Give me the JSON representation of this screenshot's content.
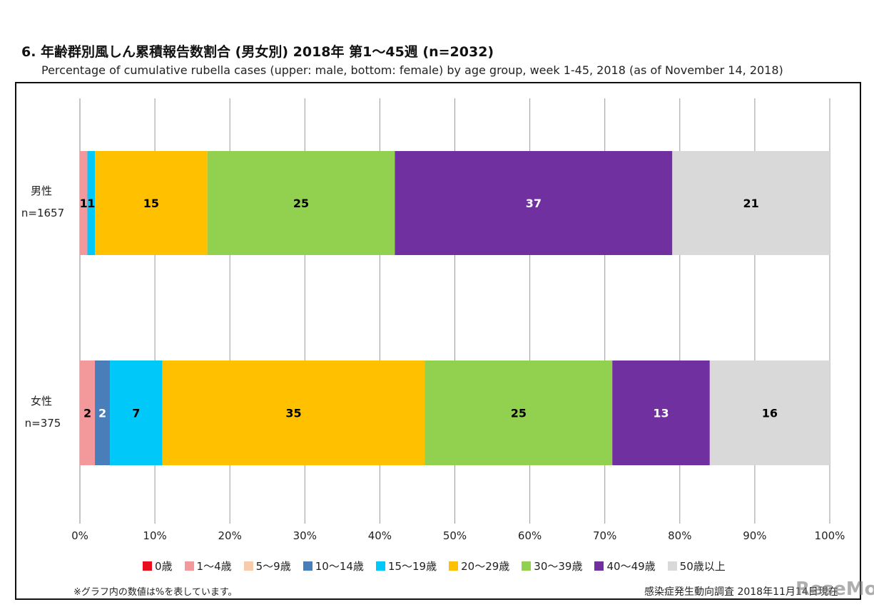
{
  "chart_data": {
    "type": "bar",
    "orientation": "horizontal",
    "stacked": true,
    "title": "6. 年齢群別風しん累積報告数割合 (男女別) 2018年 第1～45週 (n=2032)",
    "subtitle": "Percentage of cumulative rubella cases (upper: male, bottom: female) by age group, week 1-45, 2018 (as of November 14, 2018)",
    "categories": [
      {
        "label": "男性",
        "n": "n=1657"
      },
      {
        "label": "女性",
        "n": "n=375"
      }
    ],
    "xlim": [
      0,
      100
    ],
    "xticks": [
      "0%",
      "10%",
      "20%",
      "30%",
      "40%",
      "50%",
      "60%",
      "70%",
      "80%",
      "90%",
      "100%"
    ],
    "grid": true,
    "legend_position": "bottom",
    "series": [
      {
        "name": "0歳",
        "color": "#e8101e",
        "label_color": "#000",
        "values": [
          0,
          0
        ]
      },
      {
        "name": "1～4歳",
        "color": "#f4999b",
        "label_color": "#000",
        "values": [
          1,
          2
        ]
      },
      {
        "name": "5～9歳",
        "color": "#f8cbad",
        "label_color": "#000",
        "values": [
          0,
          0
        ]
      },
      {
        "name": "10～14歳",
        "color": "#4a7ebb",
        "label_color": "#fff",
        "values": [
          0,
          2
        ]
      },
      {
        "name": "15～19歳",
        "color": "#00c8f8",
        "label_color": "#000",
        "values": [
          1,
          7
        ]
      },
      {
        "name": "20～29歳",
        "color": "#ffc000",
        "label_color": "#000",
        "values": [
          15,
          35
        ]
      },
      {
        "name": "30～39歳",
        "color": "#92d050",
        "label_color": "#000",
        "values": [
          25,
          25
        ]
      },
      {
        "name": "40～49歳",
        "color": "#7030a0",
        "label_color": "#fff",
        "values": [
          37,
          13
        ]
      },
      {
        "name": "50歳以上",
        "color": "#d9d9d9",
        "label_color": "#000",
        "values": [
          21,
          16
        ]
      }
    ]
  },
  "note": "※グラフ内の数値は%を表しています。",
  "source": "感染症発生動向調査 2018年11月14日現在",
  "watermark": "ReseMom"
}
